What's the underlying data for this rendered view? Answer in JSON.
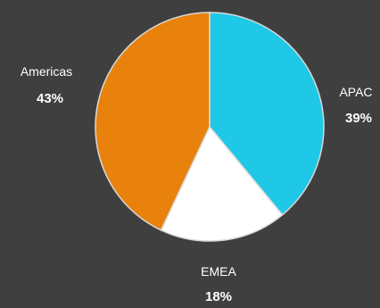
{
  "chart_data": {
    "type": "pie",
    "title": "",
    "start_angle_deg": 0,
    "direction": "clockwise",
    "slices": [
      {
        "name": "APAC",
        "value": 39,
        "label": "39%",
        "color": "#1ec8e6"
      },
      {
        "name": "EMEA",
        "value": 18,
        "label": "18%",
        "color": "#ffffff"
      },
      {
        "name": "Americas",
        "value": 43,
        "label": "43%",
        "color": "#e8820c"
      }
    ]
  },
  "colors": {
    "background": "#3f3f3f",
    "label_text": "#ffffff",
    "slice_border": "#d9d9d9"
  }
}
